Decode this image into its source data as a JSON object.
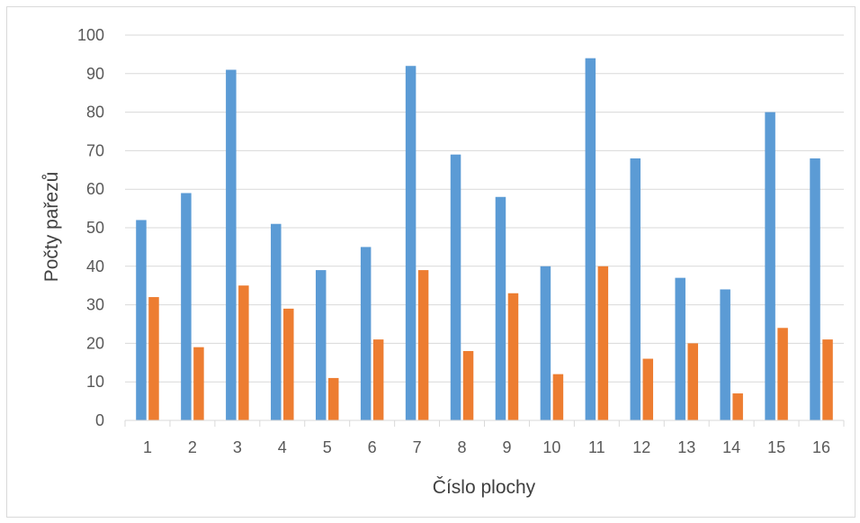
{
  "chart_data": {
    "type": "bar",
    "title": "",
    "xlabel": "Číslo plochy",
    "ylabel": "Počty pařezů",
    "categories": [
      "1",
      "2",
      "3",
      "4",
      "5",
      "6",
      "7",
      "8",
      "9",
      "10",
      "11",
      "12",
      "13",
      "14",
      "15",
      "16"
    ],
    "series": [
      {
        "color": "#5b9bd5",
        "values": [
          52,
          59,
          91,
          51,
          39,
          45,
          92,
          69,
          58,
          40,
          94,
          68,
          37,
          34,
          80,
          68
        ]
      },
      {
        "color": "#ed7d31",
        "values": [
          32,
          19,
          35,
          29,
          11,
          21,
          39,
          18,
          33,
          12,
          40,
          16,
          20,
          7,
          24,
          21
        ]
      }
    ],
    "ylim": [
      0,
      100
    ],
    "yticks": [
      0,
      10,
      20,
      30,
      40,
      50,
      60,
      70,
      80,
      90,
      100
    ],
    "grid": true,
    "gridline_color": "#d9d9d9",
    "legend": "none"
  }
}
